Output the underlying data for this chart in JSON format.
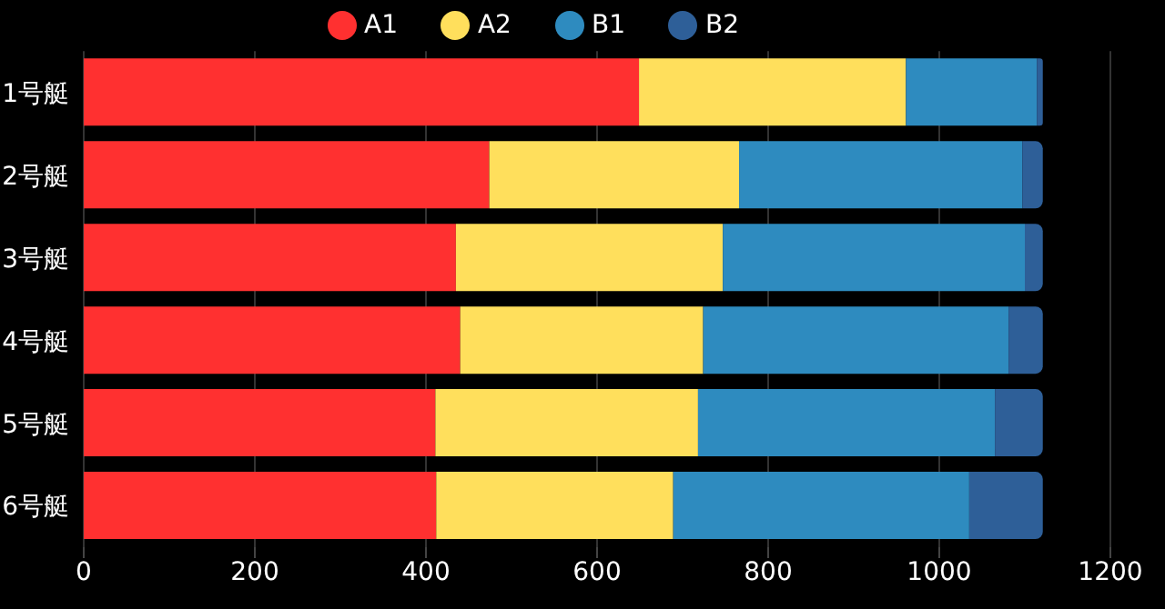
{
  "chart_data": {
    "type": "bar",
    "orientation": "horizontal",
    "stacked": true,
    "categories": [
      "1号艇",
      "2号艇",
      "3号艇",
      "4号艇",
      "5号艇",
      "6号艇"
    ],
    "series": [
      {
        "name": "A1",
        "color": "#ff3030",
        "values": [
          649,
          474,
          435,
          440,
          411,
          412
        ]
      },
      {
        "name": "A2",
        "color": "#ffdf5c",
        "values": [
          312,
          292,
          312,
          284,
          307,
          277
        ]
      },
      {
        "name": "B1",
        "color": "#2e8bbf",
        "values": [
          153,
          331,
          353,
          357,
          347,
          346
        ]
      },
      {
        "name": "B2",
        "color": "#2e5f98",
        "values": [
          7,
          24,
          21,
          40,
          56,
          86
        ]
      }
    ],
    "xlim": [
      0,
      1200
    ],
    "xticks": [
      0,
      200,
      400,
      600,
      800,
      1000,
      1200
    ],
    "grid": "x",
    "legend": "top"
  }
}
